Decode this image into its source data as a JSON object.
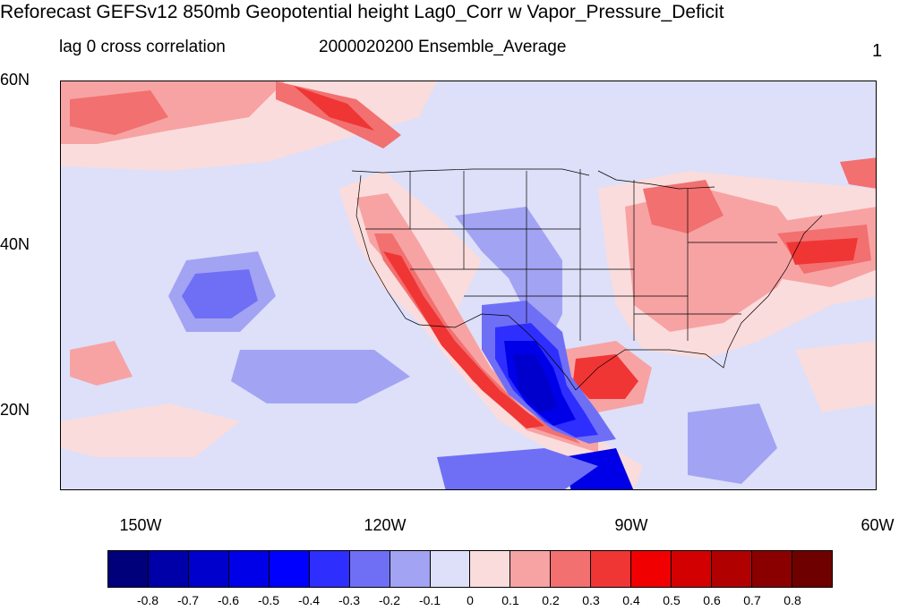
{
  "title": "Reforecast GEFSv12 850mb Geopotential height Lag0_Corr w Vapor_Pressure_Deficit",
  "left_subtitle": "lag 0 cross correlation",
  "center_subtitle": "2000020200 Ensemble_Average",
  "right_subtitle": "1",
  "map": {
    "lat_labels": [
      "60N",
      "40N",
      "20N"
    ],
    "lon_labels": [
      "150W",
      "120W",
      "90W",
      "60W"
    ],
    "projection": "cylindrical equidistant",
    "domain": {
      "lon": [
        -160,
        -60
      ],
      "lat": [
        10,
        60
      ]
    }
  },
  "colorbar": {
    "labels": [
      "-0.8",
      "-0.7",
      "-0.6",
      "-0.5",
      "-0.4",
      "-0.3",
      "-0.2",
      "-0.1",
      "0",
      "0.1",
      "0.2",
      "0.3",
      "0.4",
      "0.5",
      "0.6",
      "0.7",
      "0.8"
    ],
    "colors": [
      "#00007a",
      "#0000a8",
      "#0000cc",
      "#0000e8",
      "#0000ff",
      "#2e2eff",
      "#6f6ff6",
      "#a3a3f3",
      "#dde0f8",
      "#fbdcdc",
      "#f7a3a3",
      "#f27070",
      "#f03535",
      "#f00000",
      "#d20000",
      "#b00000",
      "#8a0000",
      "#6e0000"
    ]
  }
}
